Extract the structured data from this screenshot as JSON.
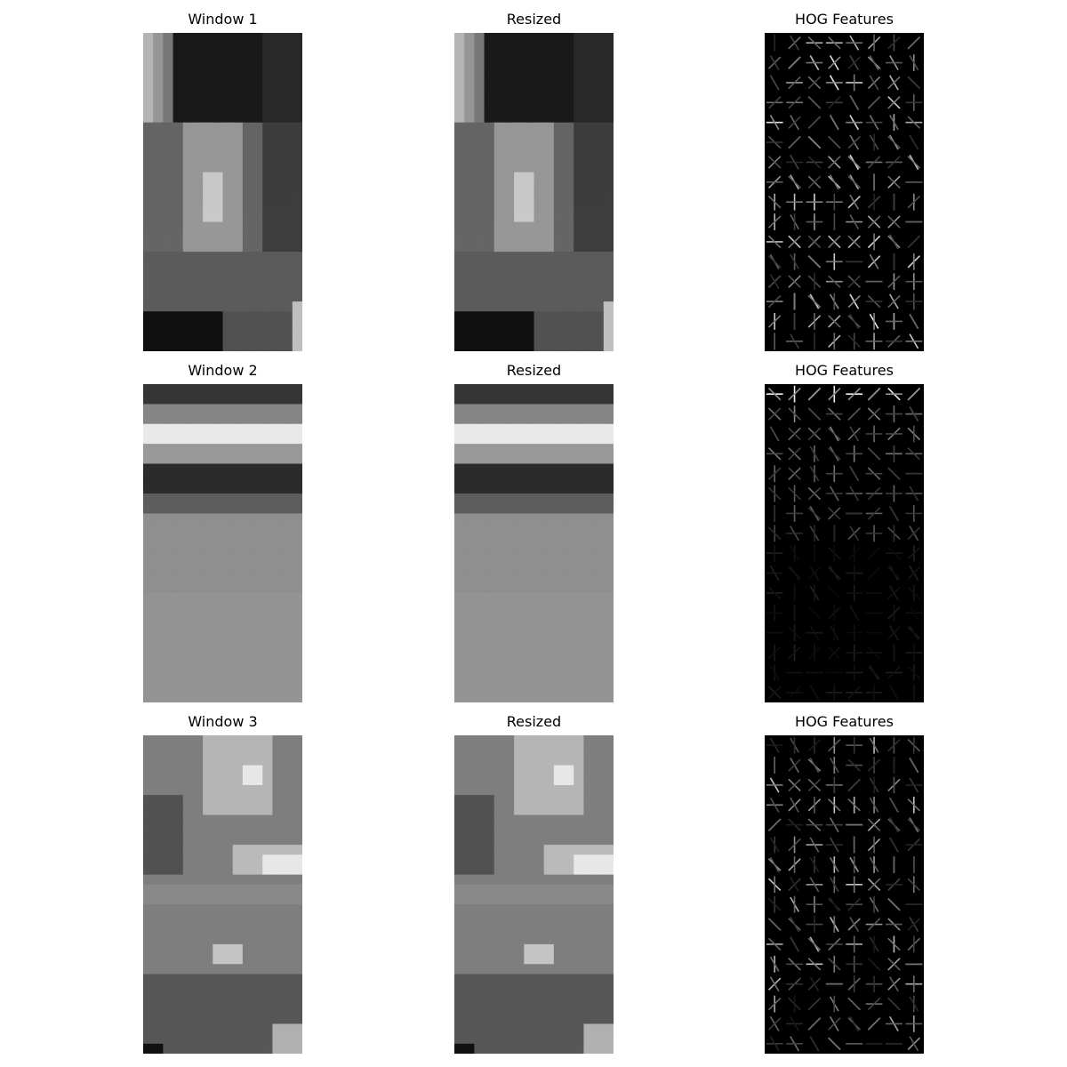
{
  "panels": [
    {
      "title": "Window 1",
      "kind": "window"
    },
    {
      "title": "Resized",
      "kind": "resized"
    },
    {
      "title": "HOG Features",
      "kind": "hog"
    },
    {
      "title": "Window 2",
      "kind": "window"
    },
    {
      "title": "Resized",
      "kind": "resized"
    },
    {
      "title": "HOG Features",
      "kind": "hog"
    },
    {
      "title": "Window 3",
      "kind": "window"
    },
    {
      "title": "Resized",
      "kind": "resized"
    },
    {
      "title": "HOG Features",
      "kind": "hog"
    }
  ],
  "colors": {
    "background": "#ffffff",
    "hog_background": "#000000",
    "hog_stroke": "#ffffff"
  }
}
